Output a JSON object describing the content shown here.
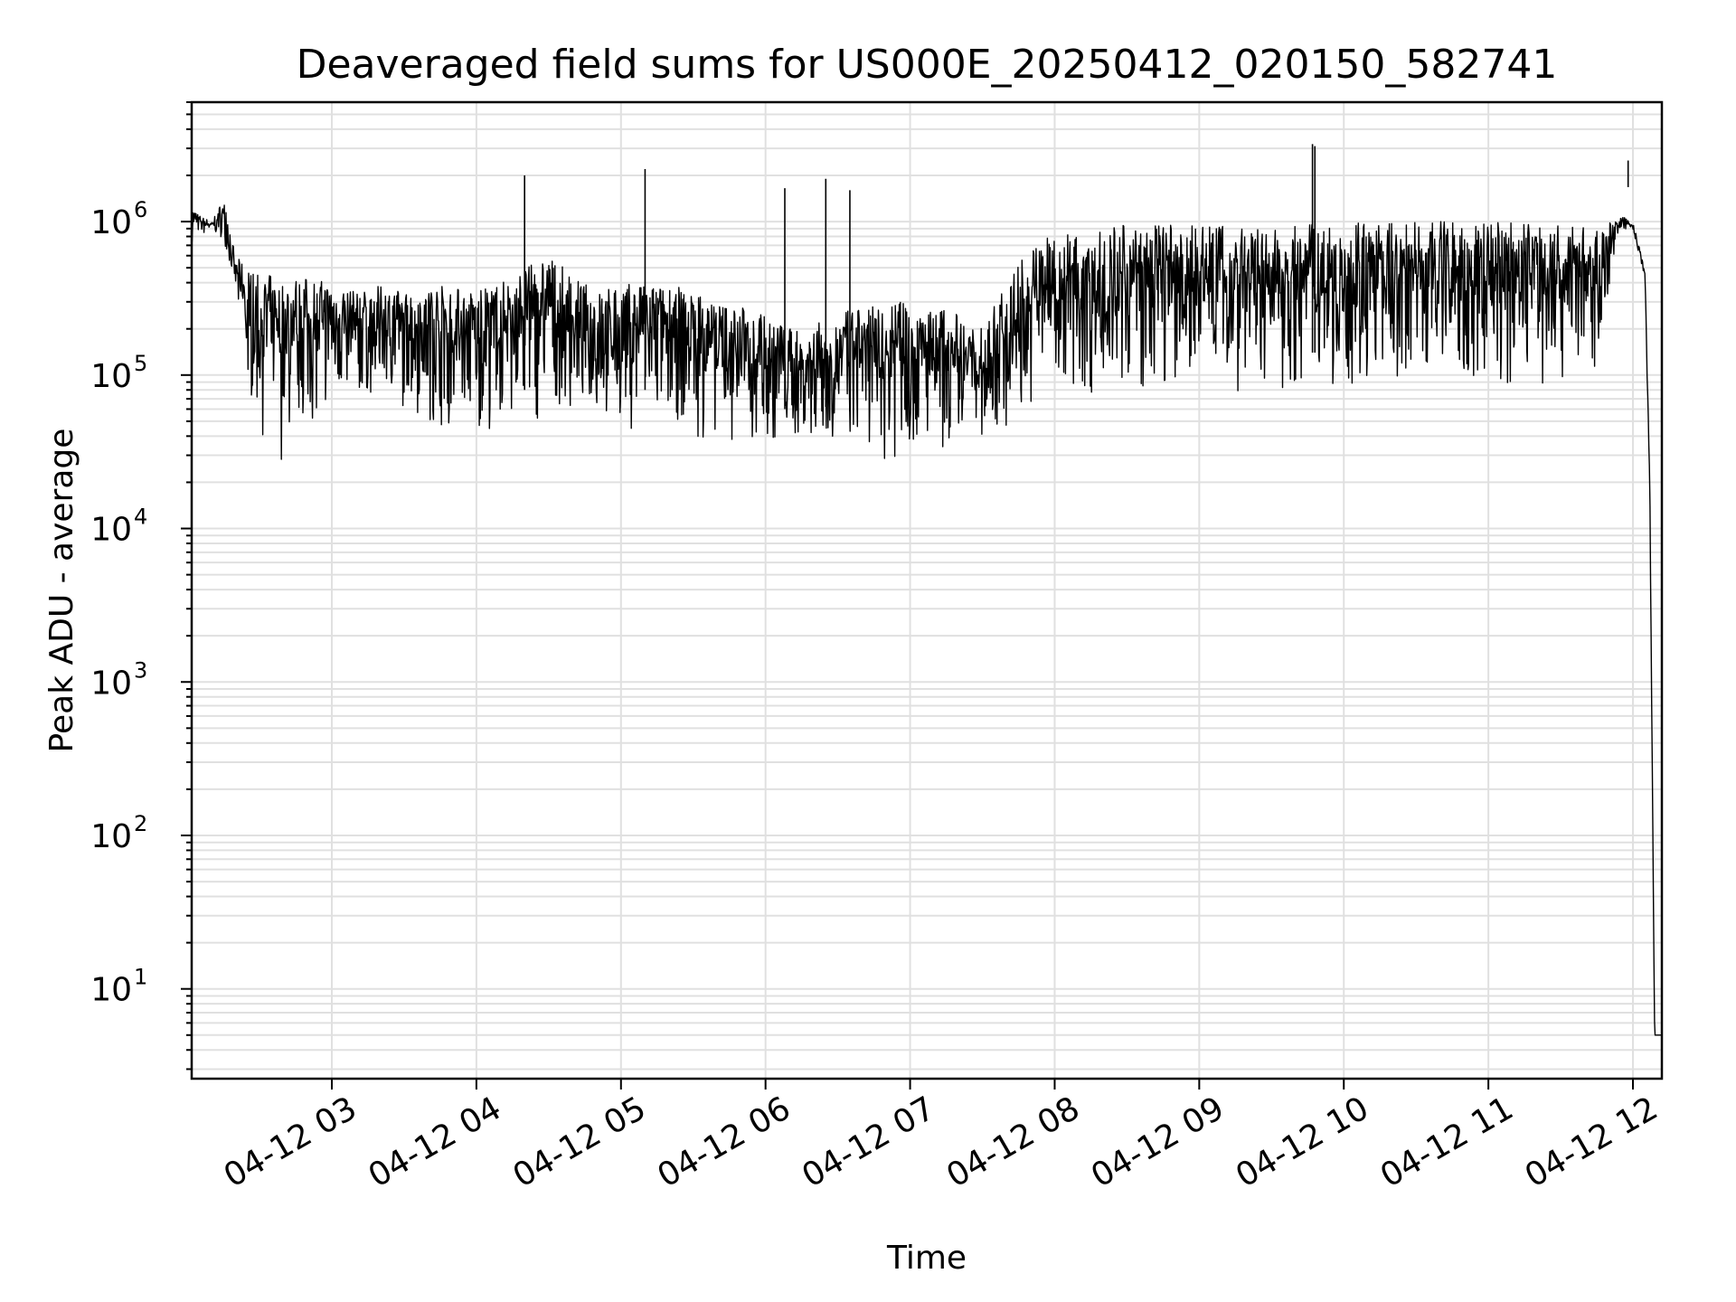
{
  "chart_data": {
    "type": "line",
    "title": "Deaveraged field sums for US000E_20250412_020150_582741",
    "xlabel": "Time",
    "ylabel": "Peak ADU - average",
    "yscale": "log",
    "ylim": [
      2.6,
      6000000
    ],
    "xlim": [
      "2025-04-12 02:01:50",
      "2025-04-12 12:12:00"
    ],
    "grid": true,
    "line_color": "#000000",
    "grid_color": "#e0e0e0",
    "x_ticks": [
      {
        "value": "2025-04-12 03:00",
        "label": "04-12 03"
      },
      {
        "value": "2025-04-12 04:00",
        "label": "04-12 04"
      },
      {
        "value": "2025-04-12 05:00",
        "label": "04-12 05"
      },
      {
        "value": "2025-04-12 06:00",
        "label": "04-12 06"
      },
      {
        "value": "2025-04-12 07:00",
        "label": "04-12 07"
      },
      {
        "value": "2025-04-12 08:00",
        "label": "04-12 08"
      },
      {
        "value": "2025-04-12 09:00",
        "label": "04-12 09"
      },
      {
        "value": "2025-04-12 10:00",
        "label": "04-12 10"
      },
      {
        "value": "2025-04-12 11:00",
        "label": "04-12 11"
      },
      {
        "value": "2025-04-12 12:00",
        "label": "04-12 12"
      }
    ],
    "y_ticks": [
      {
        "value": 10,
        "base": "10",
        "exp": "1"
      },
      {
        "value": 100,
        "base": "10",
        "exp": "2"
      },
      {
        "value": 1000,
        "base": "10",
        "exp": "3"
      },
      {
        "value": 10000,
        "base": "10",
        "exp": "4"
      },
      {
        "value": 100000,
        "base": "10",
        "exp": "5"
      },
      {
        "value": 1000000,
        "base": "10",
        "exp": "6"
      }
    ],
    "series": [
      {
        "x_times": [
          "02:02",
          "02:05",
          "02:10",
          "02:15",
          "02:20",
          "02:25",
          "02:30",
          "02:35",
          "02:40",
          "02:45",
          "02:50",
          "02:55",
          "03:00",
          "03:10",
          "03:20",
          "03:30",
          "03:40",
          "03:50",
          "04:00",
          "04:10",
          "04:20",
          "04:30",
          "04:40",
          "04:50",
          "05:00",
          "05:10",
          "05:20",
          "05:30",
          "05:40",
          "05:50",
          "06:00",
          "06:10",
          "06:20",
          "06:30",
          "06:40",
          "06:50",
          "07:00",
          "07:10",
          "07:20",
          "07:30",
          "07:40",
          "07:50",
          "08:00",
          "08:15",
          "08:30",
          "08:45",
          "09:00",
          "09:15",
          "09:30",
          "09:45",
          "10:00",
          "10:15",
          "10:30",
          "10:45",
          "11:00",
          "11:15",
          "11:30",
          "11:45",
          "11:55",
          "12:00",
          "12:05",
          "12:07",
          "12:09",
          "12:10",
          "12:12"
        ],
        "upper": [
          1300000,
          1100000,
          1000000,
          1400000,
          600000,
          500000,
          450000,
          450000,
          420000,
          450000,
          430000,
          420000,
          400000,
          350000,
          380000,
          350000,
          400000,
          380000,
          350000,
          400000,
          500000,
          600000,
          450000,
          350000,
          400000,
          380000,
          400000,
          350000,
          300000,
          280000,
          250000,
          200000,
          220000,
          250000,
          280000,
          300000,
          300000,
          280000,
          250000,
          200000,
          400000,
          700000,
          850000,
          900000,
          950000,
          950000,
          950000,
          950000,
          950000,
          950000,
          1000000,
          1000000,
          1000000,
          1000000,
          1000000,
          1000000,
          950000,
          900000,
          1100000,
          1000000,
          500000,
          20000,
          5,
          5,
          5
        ],
        "lower": [
          700000,
          800000,
          800000,
          750000,
          300000,
          60000,
          40000,
          30000,
          25000,
          30000,
          40000,
          45000,
          50000,
          55000,
          60000,
          55000,
          45000,
          40000,
          40000,
          40000,
          40000,
          45000,
          50000,
          45000,
          40000,
          40000,
          38000,
          35000,
          33000,
          32000,
          30000,
          30000,
          32000,
          30000,
          28000,
          25000,
          25000,
          25000,
          28000,
          30000,
          35000,
          50000,
          60000,
          60000,
          65000,
          65000,
          65000,
          70000,
          70000,
          70000,
          70000,
          70000,
          70000,
          70000,
          70000,
          70000,
          80000,
          100000,
          900000,
          800000,
          400000,
          15000,
          5,
          5,
          5
        ],
        "spikes": [
          {
            "time": "04:20",
            "value": 2000000
          },
          {
            "time": "05:10",
            "value": 2200000
          },
          {
            "time": "06:08",
            "value": 1650000
          },
          {
            "time": "06:25",
            "value": 1900000
          },
          {
            "time": "06:35",
            "value": 1600000
          },
          {
            "time": "09:47",
            "value": 3200000
          },
          {
            "time": "09:48",
            "value": 3100000
          },
          {
            "time": "11:58",
            "value": 2500000
          }
        ]
      }
    ]
  }
}
